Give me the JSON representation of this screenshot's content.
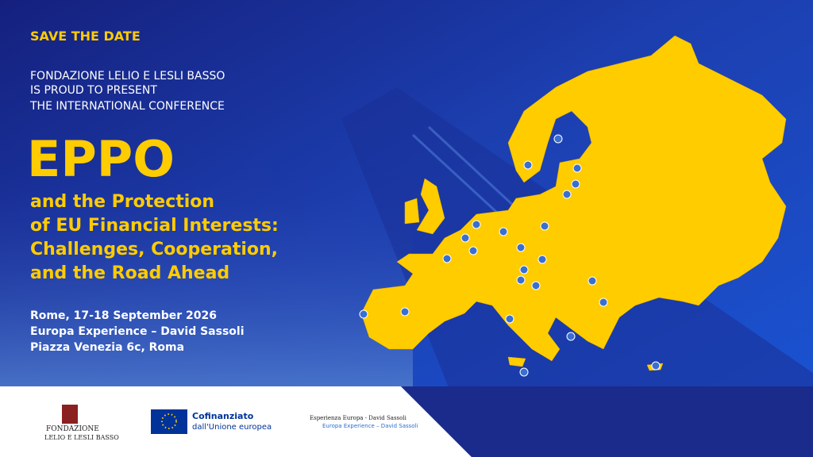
{
  "header": {
    "kicker": "SAVE THE DATE",
    "presenter": [
      "FONDAZIONE LELIO E LESLI BASSO",
      "IS PROUD TO PRESENT",
      "THE INTERNATIONAL CONFERENCE"
    ]
  },
  "title": "EPPO",
  "subtitle": [
    "and the Protection",
    "of EU Financial Interests:",
    "Challenges, Cooperation,",
    "and the Road Ahead"
  ],
  "details": [
    "Rome, 17-18 September 2026",
    "Europa Experience – David Sassoli",
    "Piazza Venezia 6c, Roma"
  ],
  "footer": {
    "fondazione": [
      "FONDAZIONE",
      "LELIO E LESLI BASSO"
    ],
    "eu": [
      "Cofinanziato",
      "dall'Unione europea"
    ],
    "esperienza": [
      "Esperienza Europa - David Sassoli",
      "Europa Experience – David Sassoli"
    ]
  }
}
